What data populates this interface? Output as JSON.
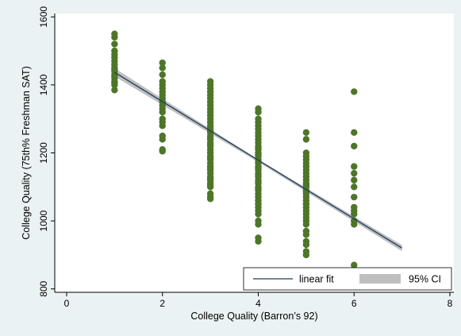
{
  "chart_data": {
    "type": "scatter",
    "title": "",
    "xlabel": "College Quality (Barron’s 92)",
    "ylabel": "College Quality (75th% Freshman SAT)",
    "xlim": [
      0,
      8
    ],
    "ylim": [
      790,
      1610
    ],
    "xticks": [
      0,
      2,
      4,
      6,
      8
    ],
    "yticks": [
      800,
      1000,
      1200,
      1400,
      1600
    ],
    "grid": false,
    "legend_position": "bottom-right",
    "colors": {
      "points": "#4d7628",
      "fit_line": "#1f3c5a",
      "ci_band": "#bfbfbf",
      "plot_bg": "#ffffff",
      "page_bg": "#eaf2f3"
    },
    "series": [
      {
        "kind": "points",
        "x": [
          1,
          1,
          1,
          1,
          1,
          1,
          1,
          1,
          1,
          1,
          1,
          1,
          1,
          1,
          1,
          1,
          1,
          1,
          2,
          2,
          2,
          2,
          2,
          2,
          2,
          2,
          2,
          2,
          2,
          2,
          2,
          2,
          2,
          2,
          2,
          2,
          2,
          2,
          2,
          3,
          3,
          3,
          3,
          3,
          3,
          3,
          3,
          3,
          3,
          3,
          3,
          3,
          3,
          3,
          3,
          3,
          3,
          3,
          3,
          3,
          3,
          3,
          3,
          3,
          3,
          3,
          3,
          3,
          3,
          3,
          3,
          3,
          3,
          3,
          3,
          3,
          3,
          3,
          3,
          3,
          3,
          3,
          4,
          4,
          4,
          4,
          4,
          4,
          4,
          4,
          4,
          4,
          4,
          4,
          4,
          4,
          4,
          4,
          4,
          4,
          4,
          4,
          4,
          4,
          4,
          4,
          4,
          4,
          4,
          4,
          4,
          4,
          4,
          4,
          4,
          4,
          4,
          4,
          4,
          4,
          4,
          4,
          4,
          4,
          5,
          5,
          5,
          5,
          5,
          5,
          5,
          5,
          5,
          5,
          5,
          5,
          5,
          5,
          5,
          5,
          5,
          5,
          5,
          5,
          5,
          5,
          5,
          5,
          5,
          5,
          5,
          5,
          5,
          5,
          5,
          5,
          6,
          6,
          6,
          6,
          6,
          6,
          6,
          6,
          6,
          6,
          6,
          6,
          6,
          6
        ],
        "y": [
          1550,
          1540,
          1520,
          1500,
          1490,
          1480,
          1470,
          1460,
          1450,
          1445,
          1440,
          1430,
          1425,
          1420,
          1410,
          1405,
          1400,
          1385,
          1465,
          1450,
          1430,
          1410,
          1400,
          1390,
          1380,
          1370,
          1360,
          1350,
          1340,
          1330,
          1300,
          1290,
          1280,
          1250,
          1240,
          1210,
          1205,
          1350,
          1320,
          1410,
          1400,
          1390,
          1380,
          1370,
          1360,
          1350,
          1340,
          1330,
          1320,
          1310,
          1300,
          1290,
          1280,
          1270,
          1260,
          1250,
          1240,
          1230,
          1220,
          1210,
          1200,
          1190,
          1180,
          1170,
          1160,
          1150,
          1140,
          1130,
          1120,
          1110,
          1100,
          1080,
          1070,
          1065,
          1275,
          1265,
          1245,
          1225,
          1185,
          1155,
          1125,
          1105,
          1330,
          1320,
          1300,
          1290,
          1280,
          1270,
          1260,
          1250,
          1240,
          1230,
          1220,
          1210,
          1200,
          1190,
          1180,
          1170,
          1160,
          1150,
          1140,
          1130,
          1120,
          1110,
          1100,
          1090,
          1080,
          1070,
          1060,
          1050,
          1040,
          1030,
          1020,
          1000,
          990,
          950,
          940,
          1215,
          1195,
          1175,
          1155,
          1135,
          1115,
          1095,
          1260,
          1240,
          1200,
          1190,
          1180,
          1170,
          1160,
          1150,
          1140,
          1130,
          1120,
          1110,
          1100,
          1090,
          1080,
          1070,
          1060,
          1050,
          1040,
          1030,
          1020,
          1010,
          1000,
          990,
          970,
          960,
          940,
          930,
          910,
          900,
          1105,
          1085,
          1380,
          1260,
          1220,
          1160,
          1140,
          1120,
          1100,
          1070,
          1040,
          1030,
          1020,
          1000,
          990,
          870
        ]
      },
      {
        "name": "linear fit",
        "kind": "line",
        "x": [
          1,
          7
        ],
        "y": [
          1437,
          920
        ]
      },
      {
        "name": "95% CI",
        "kind": "band",
        "x": [
          1,
          4,
          7
        ],
        "y_low": [
          1425,
          1173,
          911
        ],
        "y_high": [
          1449,
          1181,
          929
        ]
      }
    ]
  }
}
